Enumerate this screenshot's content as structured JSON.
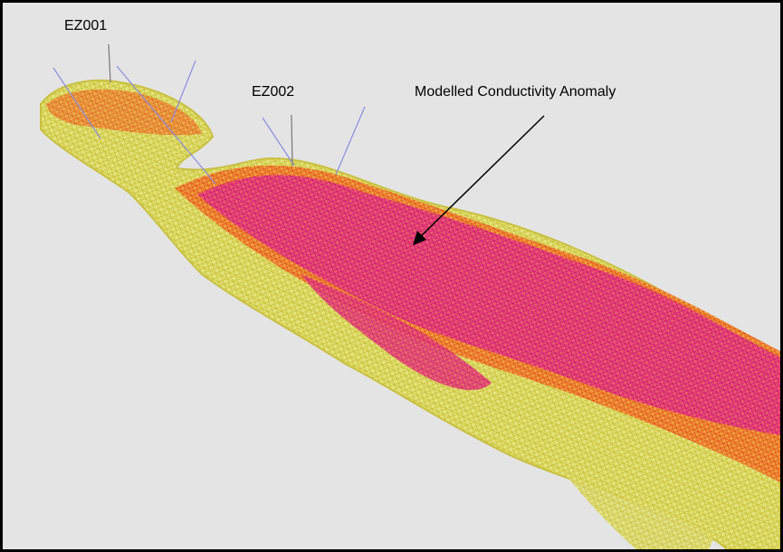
{
  "labels": [
    "EZ001",
    "EZ002",
    "Modelled Conductivity Anomaly"
  ]
}
